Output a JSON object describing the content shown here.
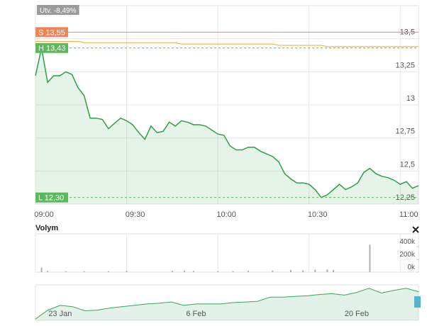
{
  "chart_data": [
    {
      "type": "line",
      "annotation": "Utv. -8,49%",
      "x": [
        540,
        542,
        544,
        546,
        548,
        550,
        552,
        554,
        556,
        558,
        560,
        562,
        564,
        566,
        568,
        570,
        572,
        574,
        576,
        578,
        580,
        582,
        584,
        586,
        588,
        590,
        592,
        594,
        596,
        598,
        600,
        602,
        604,
        606,
        608,
        610,
        612,
        614,
        616,
        618,
        620,
        622,
        624,
        626,
        628,
        630,
        632,
        634,
        636,
        638,
        640,
        642,
        644,
        646,
        648,
        650,
        652,
        654,
        656,
        658,
        660,
        662,
        664,
        666
      ],
      "series": [
        {
          "color": "#2e9e4a",
          "area": true,
          "values": [
            13.22,
            13.43,
            13.17,
            13.22,
            13.22,
            13.25,
            13.23,
            13.13,
            13.07,
            12.9,
            12.9,
            12.89,
            12.82,
            12.86,
            12.9,
            12.88,
            12.85,
            12.79,
            12.74,
            12.84,
            12.79,
            12.8,
            12.87,
            12.84,
            12.88,
            12.87,
            12.85,
            12.85,
            12.84,
            12.81,
            12.78,
            12.77,
            12.69,
            12.66,
            12.66,
            12.68,
            12.68,
            12.65,
            12.63,
            12.61,
            12.57,
            12.48,
            12.44,
            12.41,
            12.41,
            12.4,
            12.36,
            12.3,
            12.32,
            12.36,
            12.4,
            12.36,
            12.38,
            12.41,
            12.49,
            12.52,
            12.48,
            12.46,
            12.45,
            12.43,
            12.4,
            12.42,
            12.37,
            12.39
          ]
        },
        {
          "color": "#f0a830",
          "area": false,
          "values": [
            13.48,
            13.48,
            13.48,
            13.48,
            13.48,
            13.48,
            13.48,
            13.48,
            13.47,
            13.47,
            13.47,
            13.47,
            13.47,
            13.47,
            13.47,
            13.47,
            13.47,
            13.47,
            13.47,
            13.47,
            13.47,
            13.47,
            13.47,
            13.47,
            13.46,
            13.46,
            13.46,
            13.46,
            13.46,
            13.46,
            13.46,
            13.46,
            13.46,
            13.46,
            13.46,
            13.46,
            13.46,
            13.46,
            13.46,
            13.46,
            13.45,
            13.45,
            13.45,
            13.45,
            13.45,
            13.45,
            13.45,
            13.45,
            13.44,
            13.44,
            13.44,
            13.44,
            13.44,
            13.44,
            13.44,
            13.44,
            13.44,
            13.44,
            13.44,
            13.44,
            13.44,
            13.44,
            13.44,
            13.44
          ]
        }
      ],
      "reference_lines": [
        {
          "label": "S 13,55",
          "value": 13.55,
          "color": "#ef8457",
          "dashed": false
        },
        {
          "label": "H 13,43",
          "value": 13.43,
          "color": "#5cb85c",
          "dashed": true
        },
        {
          "label": "L 12,30",
          "value": 12.3,
          "color": "#5cb85c",
          "dashed": true
        }
      ],
      "xlim": [
        540,
        666
      ],
      "xticks": [
        {
          "value": 540,
          "label": "09:00"
        },
        {
          "value": 570,
          "label": "09:30"
        },
        {
          "value": 600,
          "label": "10:00"
        },
        {
          "value": 630,
          "label": "10:30"
        },
        {
          "value": 660,
          "label": "11:00"
        }
      ],
      "ylim": [
        12.25,
        13.75
      ],
      "yticks": [
        {
          "value": 12.25,
          "label": "12,25"
        },
        {
          "value": 12.5,
          "label": "12,5"
        },
        {
          "value": 12.75,
          "label": "12,75"
        },
        13,
        {
          "value": 13.25,
          "label": "13,25"
        },
        {
          "value": 13.5,
          "label": "13,5"
        }
      ],
      "grid": true
    },
    {
      "type": "bar",
      "title": "Volym",
      "color": "#b0b0b0",
      "x": [
        542,
        544,
        550,
        556,
        564,
        570,
        585,
        589,
        592,
        600,
        605,
        610,
        618,
        624,
        628,
        632,
        636,
        638,
        650
      ],
      "values": [
        70000,
        20000,
        15000,
        15000,
        15000,
        20000,
        20000,
        25000,
        20000,
        15000,
        15000,
        20000,
        25000,
        35000,
        30000,
        40000,
        40000,
        35000,
        430000
      ],
      "xlim": [
        540,
        666
      ],
      "ylim": [
        0,
        600000
      ],
      "yticks": [
        {
          "value": 0,
          "label": "0k"
        },
        {
          "value": 200000,
          "label": "200k"
        },
        {
          "value": 400000,
          "label": "400k"
        }
      ]
    },
    {
      "type": "area",
      "color": "#3aa35a",
      "categories": [
        null,
        null,
        "23 Jan",
        null,
        null,
        null,
        null,
        null,
        null,
        null,
        null,
        null,
        null,
        "6 Feb",
        null,
        null,
        null,
        null,
        null,
        null,
        null,
        null,
        null,
        null,
        null,
        null,
        "20 Feb",
        null,
        null,
        null,
        null,
        null
      ],
      "values": [
        12.4,
        13.08,
        13.44,
        13.34,
        13.03,
        13.08,
        13.23,
        13.34,
        13.44,
        13.55,
        13.6,
        13.7,
        13.44,
        13.55,
        13.55,
        13.55,
        13.65,
        13.7,
        13.75,
        14.07,
        14.07,
        14.12,
        14.17,
        14.27,
        14.33,
        14.22,
        14.43,
        14.74,
        14.38,
        14.58,
        14.74,
        14.48
      ],
      "ylim": [
        12.3,
        15
      ]
    }
  ]
}
